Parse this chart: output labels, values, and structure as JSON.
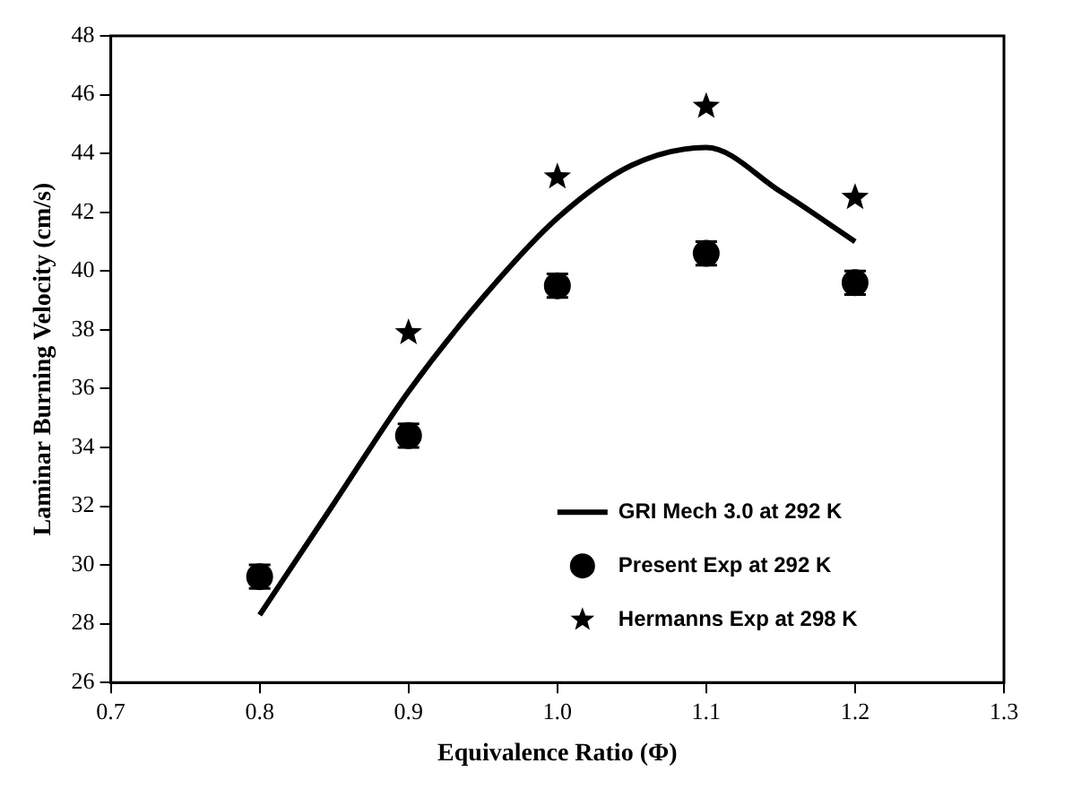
{
  "chart_data": {
    "type": "scatter",
    "xlabel": "Equivalence Ratio (Φ)",
    "ylabel": "Laminar Burning Velocity (cm/s)",
    "xlim": [
      0.7,
      1.3
    ],
    "xticks": [
      {
        "value": 0.7,
        "label": "0.7"
      },
      {
        "value": 0.8,
        "label": "0.8"
      },
      {
        "value": 0.9,
        "label": "0.9"
      },
      {
        "value": 1.0,
        "label": "1.0"
      },
      {
        "value": 1.1,
        "label": "1.1"
      },
      {
        "value": 1.2,
        "label": "1.2"
      },
      {
        "value": 1.3,
        "label": "1.3"
      }
    ],
    "ylim": [
      26,
      48
    ],
    "yticks": [
      26,
      28,
      30,
      32,
      34,
      36,
      38,
      40,
      42,
      44,
      46,
      48
    ],
    "grid": false,
    "legend": "bottom right",
    "series": [
      {
        "name": "GRI Mech 3.0 at 292 K",
        "type": "line",
        "color": "#000000",
        "marker": "none",
        "line_style": "solid",
        "x": [
          0.8,
          0.85,
          0.9,
          0.95,
          1.0,
          1.05,
          1.1,
          1.15,
          1.2
        ],
        "values": [
          28.3,
          32.1,
          35.9,
          39.1,
          41.8,
          43.6,
          44.2,
          42.7,
          41.0
        ]
      },
      {
        "name": "Present Exp at 292 K",
        "type": "scatter",
        "color": "#000000",
        "marker": "circle",
        "x": [
          0.8,
          0.9,
          1.0,
          1.1,
          1.2
        ],
        "values": [
          29.6,
          34.4,
          39.5,
          40.6,
          39.6
        ],
        "errors": [
          0.4,
          0.4,
          0.4,
          0.4,
          0.4
        ]
      },
      {
        "name": "Hermanns Exp at 298 K",
        "type": "scatter",
        "color": "#000000",
        "marker": "star",
        "x": [
          0.9,
          1.0,
          1.1,
          1.2
        ],
        "values": [
          37.9,
          43.2,
          45.6,
          42.5
        ]
      }
    ]
  }
}
